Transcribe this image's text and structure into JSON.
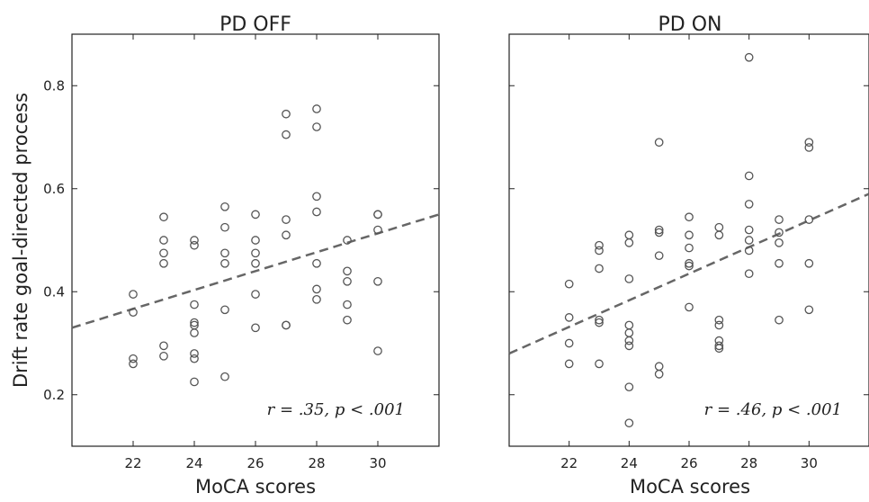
{
  "chart_data": [
    {
      "type": "scatter",
      "title": "PD OFF",
      "xlabel": "MoCA scores",
      "ylabel": "Drift rate goal-directed process",
      "xlim": [
        20,
        32
      ],
      "ylim": [
        0.1,
        0.9
      ],
      "xticks": [
        "22",
        "24",
        "26",
        "28",
        "30"
      ],
      "yticks": [
        "0.2",
        "0.4",
        "0.6",
        "0.8"
      ],
      "annotation": "r = .35,  p < .001",
      "grid": false,
      "fit_line": {
        "x": [
          20,
          32
        ],
        "y": [
          0.33,
          0.55
        ],
        "style": "dashed"
      },
      "points": [
        [
          22,
          0.395
        ],
        [
          22,
          0.36
        ],
        [
          22,
          0.27
        ],
        [
          22,
          0.26
        ],
        [
          23,
          0.545
        ],
        [
          23,
          0.5
        ],
        [
          23,
          0.475
        ],
        [
          23,
          0.455
        ],
        [
          23,
          0.295
        ],
        [
          23,
          0.275
        ],
        [
          24,
          0.5
        ],
        [
          24,
          0.49
        ],
        [
          24,
          0.375
        ],
        [
          24,
          0.34
        ],
        [
          24,
          0.335
        ],
        [
          24,
          0.32
        ],
        [
          24,
          0.28
        ],
        [
          24,
          0.27
        ],
        [
          24,
          0.225
        ],
        [
          25,
          0.565
        ],
        [
          25,
          0.525
        ],
        [
          25,
          0.475
        ],
        [
          25,
          0.455
        ],
        [
          25,
          0.365
        ],
        [
          25,
          0.235
        ],
        [
          26,
          0.55
        ],
        [
          26,
          0.5
        ],
        [
          26,
          0.475
        ],
        [
          26,
          0.455
        ],
        [
          26,
          0.395
        ],
        [
          26,
          0.33
        ],
        [
          27,
          0.745
        ],
        [
          27,
          0.705
        ],
        [
          27,
          0.54
        ],
        [
          27,
          0.51
        ],
        [
          27,
          0.335
        ],
        [
          27,
          0.335
        ],
        [
          28,
          0.755
        ],
        [
          28,
          0.72
        ],
        [
          28,
          0.585
        ],
        [
          28,
          0.555
        ],
        [
          28,
          0.455
        ],
        [
          28,
          0.405
        ],
        [
          28,
          0.385
        ],
        [
          29,
          0.5
        ],
        [
          29,
          0.44
        ],
        [
          29,
          0.42
        ],
        [
          29,
          0.375
        ],
        [
          29,
          0.345
        ],
        [
          30,
          0.55
        ],
        [
          30,
          0.55
        ],
        [
          30,
          0.52
        ],
        [
          30,
          0.42
        ],
        [
          30,
          0.285
        ]
      ]
    },
    {
      "type": "scatter",
      "title": "PD ON",
      "xlabel": "MoCA scores",
      "ylabel": "",
      "xlim": [
        20,
        32
      ],
      "ylim": [
        0.1,
        0.9
      ],
      "xticks": [
        "22",
        "24",
        "26",
        "28",
        "30"
      ],
      "yticks": [],
      "annotation": "r = .46,  p < .001",
      "grid": false,
      "fit_line": {
        "x": [
          20,
          32
        ],
        "y": [
          0.28,
          0.59
        ],
        "style": "dashed"
      },
      "points": [
        [
          22,
          0.415
        ],
        [
          22,
          0.35
        ],
        [
          22,
          0.3
        ],
        [
          22,
          0.26
        ],
        [
          23,
          0.49
        ],
        [
          23,
          0.48
        ],
        [
          23,
          0.445
        ],
        [
          23,
          0.345
        ],
        [
          23,
          0.34
        ],
        [
          23,
          0.26
        ],
        [
          24,
          0.51
        ],
        [
          24,
          0.495
        ],
        [
          24,
          0.425
        ],
        [
          24,
          0.335
        ],
        [
          24,
          0.32
        ],
        [
          24,
          0.305
        ],
        [
          24,
          0.295
        ],
        [
          24,
          0.215
        ],
        [
          24,
          0.145
        ],
        [
          25,
          0.69
        ],
        [
          25,
          0.52
        ],
        [
          25,
          0.515
        ],
        [
          25,
          0.47
        ],
        [
          25,
          0.255
        ],
        [
          25,
          0.24
        ],
        [
          26,
          0.545
        ],
        [
          26,
          0.51
        ],
        [
          26,
          0.485
        ],
        [
          26,
          0.455
        ],
        [
          26,
          0.45
        ],
        [
          26,
          0.37
        ],
        [
          27,
          0.525
        ],
        [
          27,
          0.51
        ],
        [
          27,
          0.345
        ],
        [
          27,
          0.335
        ],
        [
          27,
          0.305
        ],
        [
          27,
          0.295
        ],
        [
          27,
          0.29
        ],
        [
          28,
          0.855
        ],
        [
          28,
          0.625
        ],
        [
          28,
          0.57
        ],
        [
          28,
          0.52
        ],
        [
          28,
          0.5
        ],
        [
          28,
          0.48
        ],
        [
          28,
          0.435
        ],
        [
          29,
          0.54
        ],
        [
          29,
          0.515
        ],
        [
          29,
          0.495
        ],
        [
          29,
          0.455
        ],
        [
          29,
          0.345
        ],
        [
          30,
          0.69
        ],
        [
          30,
          0.68
        ],
        [
          30,
          0.54
        ],
        [
          30,
          0.455
        ],
        [
          30,
          0.365
        ]
      ]
    }
  ]
}
